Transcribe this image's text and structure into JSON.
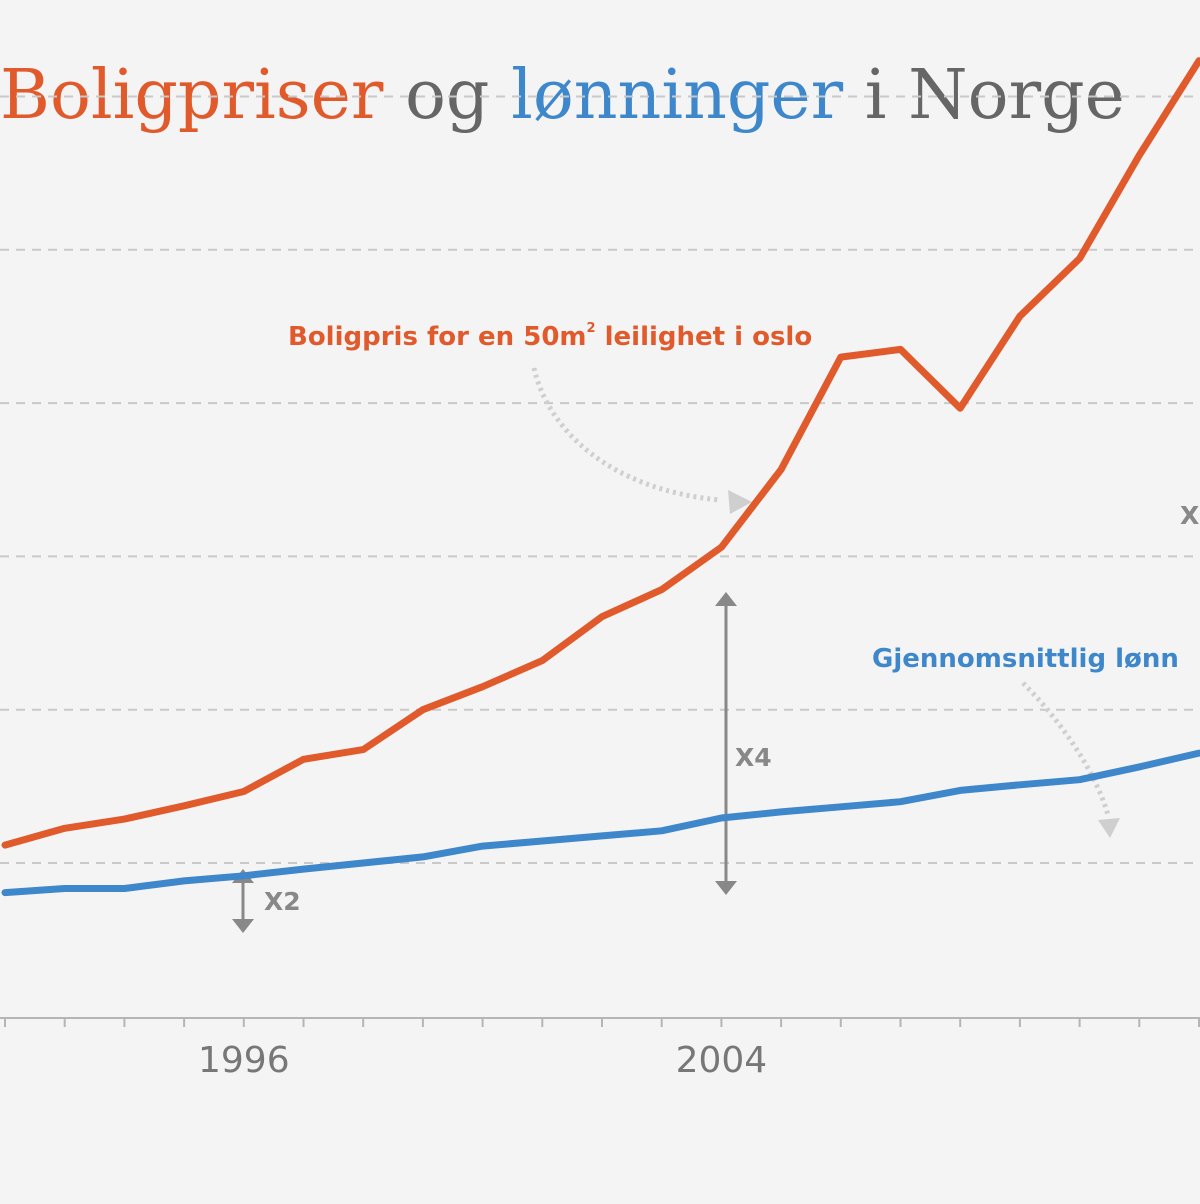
{
  "colors": {
    "background": "#f4f4f4",
    "house": "#e05a2b",
    "wage": "#3e87cb",
    "title_neutral": "#666666",
    "grid": "#c9c9c9",
    "axis": "#b5b5b5",
    "tick_label": "#777777",
    "multiplier": "#888888",
    "arrow_light": "#cfcfcf"
  },
  "title": {
    "part1": "Boligpriser",
    "part2": " og ",
    "part3": "lønninger",
    "part4": " i Norge"
  },
  "annotations": {
    "house_label_pre": "Boligpris for en 50m",
    "house_label_sup": "2",
    "house_label_post": " leilighet i oslo",
    "wage_label": "Gjennomsnittlig lønn",
    "mult_1996": "X2",
    "mult_2004": "X4",
    "mult_right": "X"
  },
  "chart_data": {
    "type": "line",
    "title": "Boligpriser og lønninger i Norge",
    "x_tick_labels": [
      "1996",
      "2004"
    ],
    "x_range": [
      1992,
      2012
    ],
    "grid": "horizontal dashed",
    "series": [
      {
        "name": "Boligpris for en 50m2 leilighet i oslo",
        "color": "#e05a2b",
        "x": [
          1992,
          1993,
          1994,
          1995,
          1996,
          1997,
          1998,
          1999,
          2000,
          2001,
          2002,
          2003,
          2004,
          2005,
          2006,
          2007,
          2008,
          2009,
          2010,
          2011,
          2012
        ],
        "values": [
          0.35,
          0.68,
          0.86,
          1.12,
          1.4,
          2.03,
          2.22,
          3.0,
          3.45,
          3.96,
          4.82,
          5.35,
          6.18,
          7.7,
          9.9,
          10.05,
          8.9,
          10.7,
          11.83,
          13.85,
          15.7
        ]
      },
      {
        "name": "Gjennomsnittlig lønn",
        "color": "#3e87cb",
        "x": [
          1992,
          1993,
          1994,
          1995,
          1996,
          1997,
          1998,
          1999,
          2000,
          2001,
          2002,
          2003,
          2004,
          2005,
          2006,
          2007,
          2008,
          2009,
          2010,
          2011,
          2012
        ],
        "values": [
          -0.58,
          -0.5,
          -0.5,
          -0.35,
          -0.25,
          -0.12,
          0.0,
          0.12,
          0.33,
          0.43,
          0.53,
          0.63,
          0.88,
          1.0,
          1.1,
          1.2,
          1.42,
          1.53,
          1.63,
          1.88,
          2.15
        ]
      }
    ]
  }
}
